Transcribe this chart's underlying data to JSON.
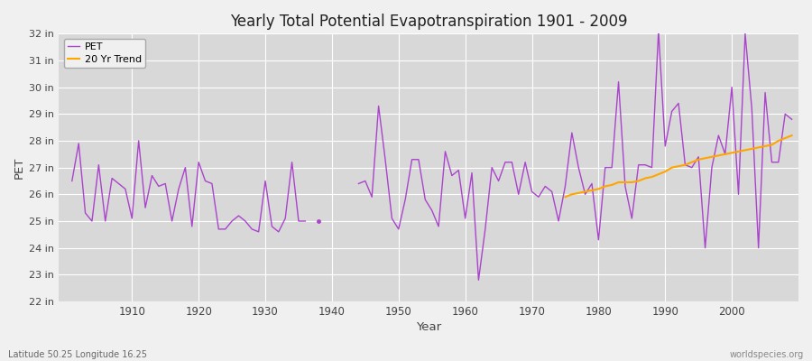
{
  "title": "Yearly Total Potential Evapotranspiration 1901 - 2009",
  "xlabel": "Year",
  "ylabel": "PET",
  "bottom_left_label": "Latitude 50.25 Longitude 16.25",
  "bottom_right_label": "worldspecies.org",
  "pet_color": "#AA44CC",
  "trend_color": "#FFA500",
  "fig_bg_color": "#F0F0F0",
  "plot_bg_color": "#D8D8D8",
  "grid_color": "#FFFFFF",
  "ylim_min": 22,
  "ylim_max": 32,
  "xlim_min": 1899,
  "xlim_max": 2010,
  "years_segment1": [
    1901,
    1902,
    1903,
    1904,
    1905,
    1906,
    1907,
    1908,
    1909,
    1910,
    1911,
    1912,
    1913,
    1914,
    1915,
    1916,
    1917,
    1918,
    1919,
    1920,
    1921,
    1922,
    1923,
    1924,
    1925,
    1926,
    1927,
    1928,
    1929,
    1930,
    1931,
    1932,
    1933,
    1934,
    1935,
    1936
  ],
  "pet_segment1": [
    26.5,
    27.9,
    25.3,
    25.0,
    27.1,
    25.0,
    26.6,
    26.4,
    26.2,
    25.1,
    28.0,
    25.5,
    26.7,
    26.3,
    26.4,
    25.0,
    26.2,
    27.0,
    24.8,
    27.2,
    26.5,
    26.4,
    24.7,
    24.7,
    25.0,
    25.2,
    25.0,
    24.7,
    24.6,
    26.5,
    24.8,
    24.6,
    25.1,
    27.2,
    25.0,
    25.0
  ],
  "years_isolated": [
    1938
  ],
  "pet_isolated": [
    25.0
  ],
  "years_segment2": [
    1944,
    1945,
    1946,
    1947,
    1948,
    1949,
    1950,
    1951,
    1952,
    1953,
    1954,
    1955,
    1956,
    1957,
    1958,
    1959,
    1960,
    1961,
    1962,
    1963,
    1964,
    1965,
    1966,
    1967,
    1968,
    1969,
    1970,
    1971,
    1972,
    1973,
    1974,
    1975,
    1976,
    1977,
    1978,
    1979,
    1980,
    1981,
    1982,
    1983,
    1984,
    1985,
    1986,
    1987,
    1988,
    1989,
    1990,
    1991,
    1992,
    1993,
    1994,
    1995,
    1996,
    1997,
    1998,
    1999,
    2000,
    2001,
    2002,
    2003,
    2004,
    2005,
    2006,
    2007,
    2008,
    2009
  ],
  "pet_segment2": [
    26.4,
    26.5,
    25.9,
    29.3,
    27.3,
    25.1,
    24.7,
    25.8,
    27.3,
    27.3,
    25.8,
    25.4,
    24.8,
    27.6,
    26.7,
    26.9,
    25.1,
    26.8,
    22.8,
    24.7,
    27.0,
    26.5,
    27.2,
    27.2,
    26.0,
    27.2,
    26.1,
    25.9,
    26.3,
    26.1,
    25.0,
    26.3,
    28.3,
    27.0,
    26.0,
    26.4,
    24.3,
    27.0,
    27.0,
    30.2,
    26.3,
    25.1,
    27.1,
    27.1,
    27.0,
    32.1,
    27.8,
    29.1,
    29.4,
    27.1,
    27.0,
    27.4,
    24.0,
    27.0,
    28.2,
    27.5,
    30.0,
    26.0,
    32.0,
    29.2,
    24.0,
    29.8,
    27.2,
    27.2,
    29.0,
    28.8
  ],
  "trend_years": [
    1975,
    1976,
    1977,
    1978,
    1979,
    1980,
    1981,
    1982,
    1983,
    1984,
    1985,
    1986,
    1987,
    1988,
    1989,
    1990,
    1991,
    1992,
    1993,
    1994,
    1995,
    1996,
    1997,
    1998,
    1999,
    2000,
    2001,
    2002,
    2003,
    2004,
    2005,
    2006,
    2007,
    2008,
    2009
  ],
  "trend_values": [
    25.9,
    26.0,
    26.05,
    26.1,
    26.15,
    26.2,
    26.3,
    26.35,
    26.45,
    26.45,
    26.45,
    26.5,
    26.6,
    26.65,
    26.75,
    26.85,
    27.0,
    27.05,
    27.1,
    27.2,
    27.3,
    27.35,
    27.4,
    27.45,
    27.5,
    27.55,
    27.6,
    27.65,
    27.7,
    27.75,
    27.8,
    27.85,
    28.0,
    28.1,
    28.2
  ]
}
